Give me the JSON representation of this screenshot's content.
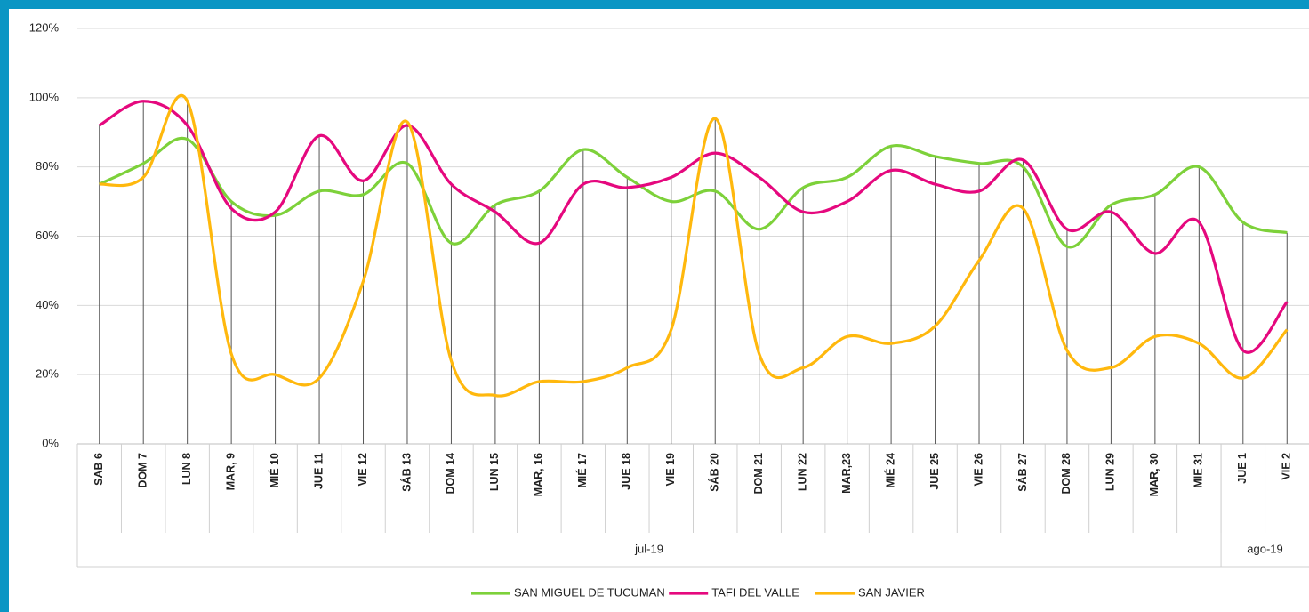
{
  "chart_data": {
    "type": "line",
    "categories": [
      "SAB 6",
      "DOM 7",
      "LUN 8",
      "MAR, 9",
      "MIÉ 10",
      "JUE 11",
      "VIE 12",
      "SÁB 13",
      "DOM 14",
      "LUN 15",
      "MAR, 16",
      "MIÉ 17",
      "JUE 18",
      "VIE 19",
      "SÁB 20",
      "DOM 21",
      "LUN 22",
      "MAR,23",
      "MIÉ 24",
      "JUE 25",
      "VIE 26",
      "SÁB 27",
      "DOM 28",
      "LUN 29",
      "MAR, 30",
      "MIE 31",
      "JUE 1",
      "VIE 2"
    ],
    "x_groups": [
      {
        "label": "jul-19",
        "count": 26
      },
      {
        "label": "ago-19",
        "count": 2
      }
    ],
    "series": [
      {
        "name": "SAN MIGUEL DE TUCUMAN",
        "color": "#7dd13a",
        "values": [
          75,
          81,
          88,
          70,
          66,
          73,
          72,
          81,
          58,
          69,
          73,
          85,
          77,
          70,
          73,
          62,
          74,
          77,
          86,
          83,
          81,
          80,
          57,
          69,
          72,
          80,
          64,
          61
        ]
      },
      {
        "name": "TAFI DEL VALLE",
        "color": "#e5087e",
        "values": [
          92,
          99,
          92,
          68,
          67,
          89,
          76,
          92,
          75,
          67,
          58,
          75,
          74,
          77,
          84,
          77,
          67,
          70,
          79,
          75,
          73,
          82,
          62,
          67,
          55,
          64,
          27,
          41
        ]
      },
      {
        "name": "SAN JAVIER",
        "color": "#ffb80d",
        "values": [
          75,
          77,
          99,
          26,
          20,
          19,
          47,
          93,
          24,
          14,
          18,
          18,
          22,
          33,
          94,
          26,
          22,
          31,
          29,
          34,
          53,
          68,
          27,
          22,
          31,
          29,
          19,
          33
        ]
      }
    ],
    "ylim": [
      0,
      120
    ],
    "yticks": [
      {
        "value": 0,
        "label": "0%"
      },
      {
        "value": 20,
        "label": "20%"
      },
      {
        "value": 40,
        "label": "40%"
      },
      {
        "value": 60,
        "label": "60%"
      },
      {
        "value": 80,
        "label": "80%"
      },
      {
        "value": 100,
        "label": "100%"
      },
      {
        "value": 120,
        "label": "120%"
      }
    ],
    "grid": true,
    "legend": "bottom"
  }
}
